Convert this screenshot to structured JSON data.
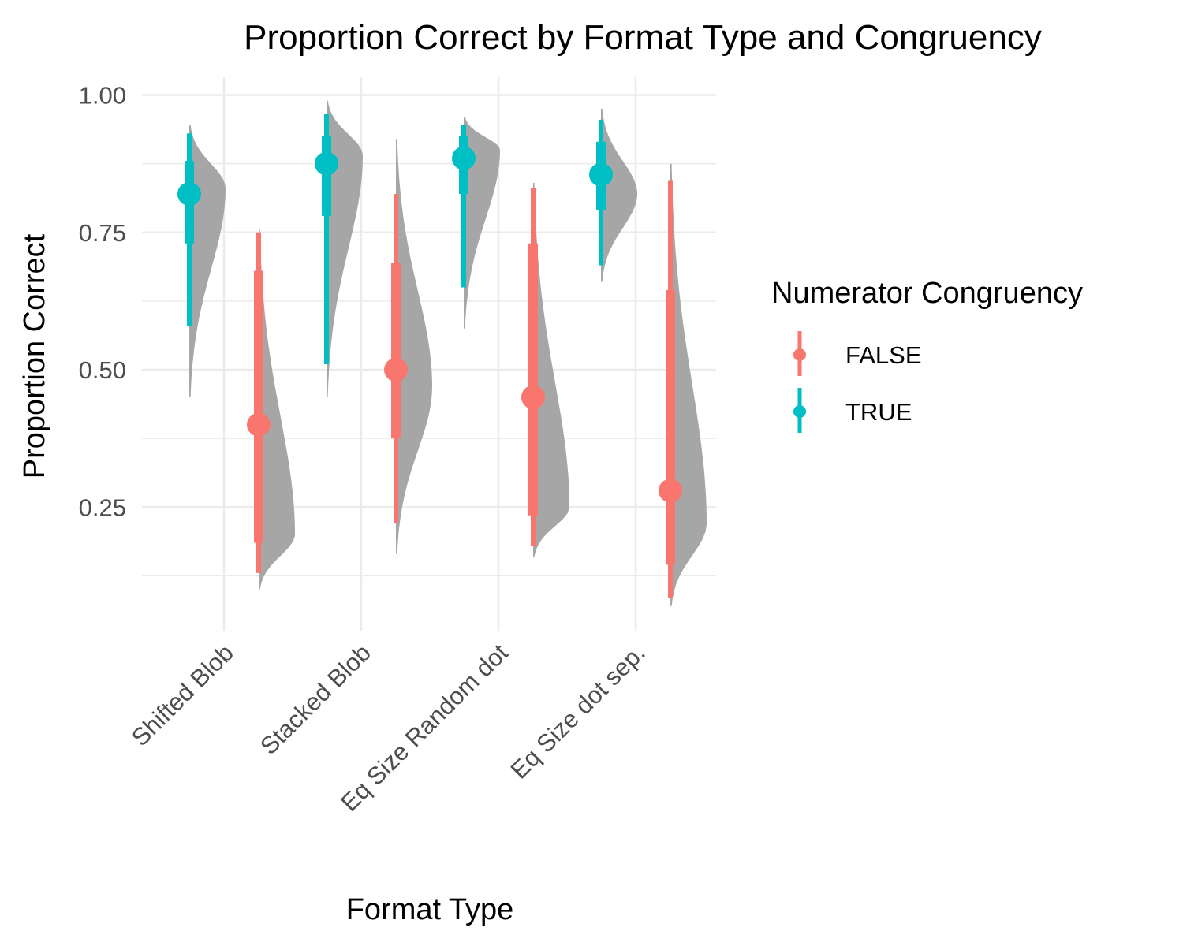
{
  "chart_data": {
    "type": "half-violin with point-interval",
    "title": "Proportion Correct by Format Type and Congruency",
    "xlabel": "Format Type",
    "ylabel": "Proportion Correct",
    "categories": [
      "Shifted Blob",
      "Stacked Blob",
      "Eq Size Random dot",
      "Eq Size dot sep."
    ],
    "y_ticks": [
      0.25,
      0.5,
      0.75,
      1.0
    ],
    "y_tick_labels": [
      "0.25",
      "0.50",
      "0.75",
      "1.00"
    ],
    "ylim": [
      0.03,
      1.03
    ],
    "grid": true,
    "violin_color": "#a6a6a6",
    "legend": {
      "title": "Numerator Congruency",
      "position": "right",
      "entries": [
        {
          "label": "FALSE",
          "color": "#F8766D"
        },
        {
          "label": "TRUE",
          "color": "#00BFC4"
        }
      ]
    },
    "series": [
      {
        "name": "TRUE",
        "color": "#00BFC4",
        "points": [
          {
            "category": "Shifted Blob",
            "median": 0.82,
            "q_low": 0.73,
            "q_high": 0.88,
            "whisker_low": 0.58,
            "whisker_high": 0.93,
            "density_min": 0.45,
            "density_max": 0.945,
            "density_mode": 0.83
          },
          {
            "category": "Stacked Blob",
            "median": 0.875,
            "q_low": 0.78,
            "q_high": 0.925,
            "whisker_low": 0.51,
            "whisker_high": 0.965,
            "density_min": 0.45,
            "density_max": 0.99,
            "density_mode": 0.89
          },
          {
            "category": "Eq Size Random dot",
            "median": 0.885,
            "q_low": 0.82,
            "q_high": 0.925,
            "whisker_low": 0.65,
            "whisker_high": 0.945,
            "density_min": 0.575,
            "density_max": 0.96,
            "density_mode": 0.9
          },
          {
            "category": "Eq Size dot sep.",
            "median": 0.855,
            "q_low": 0.79,
            "q_high": 0.915,
            "whisker_low": 0.69,
            "whisker_high": 0.955,
            "density_min": 0.66,
            "density_max": 0.975,
            "density_mode": 0.82
          }
        ]
      },
      {
        "name": "FALSE",
        "color": "#F8766D",
        "points": [
          {
            "category": "Shifted Blob",
            "median": 0.4,
            "q_low": 0.185,
            "q_high": 0.68,
            "whisker_low": 0.13,
            "whisker_high": 0.75,
            "density_min": 0.1,
            "density_max": 0.755,
            "density_mode": 0.2
          },
          {
            "category": "Stacked Blob",
            "median": 0.5,
            "q_low": 0.375,
            "q_high": 0.695,
            "whisker_low": 0.22,
            "whisker_high": 0.82,
            "density_min": 0.165,
            "density_max": 0.92,
            "density_mode": 0.47
          },
          {
            "category": "Eq Size Random dot",
            "median": 0.45,
            "q_low": 0.235,
            "q_high": 0.73,
            "whisker_low": 0.18,
            "whisker_high": 0.83,
            "density_min": 0.16,
            "density_max": 0.84,
            "density_mode": 0.25
          },
          {
            "category": "Eq Size dot sep.",
            "median": 0.28,
            "q_low": 0.145,
            "q_high": 0.645,
            "whisker_low": 0.085,
            "whisker_high": 0.845,
            "density_min": 0.07,
            "density_max": 0.875,
            "density_mode": 0.22
          }
        ]
      }
    ]
  }
}
